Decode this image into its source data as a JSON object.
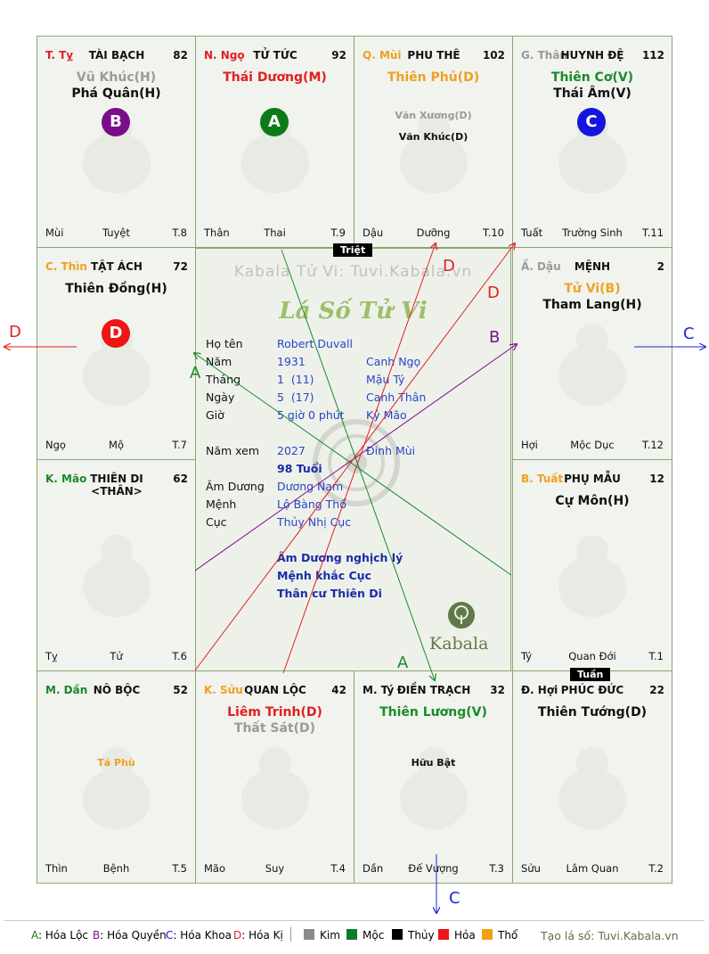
{
  "palaces": {
    "ty": {
      "zodiac": "T. Tỵ",
      "zodiac_color": "#e02020",
      "name": "TÀI BẠCH",
      "age": "82",
      "stars": [
        {
          "text": "Vũ Khúc(H)",
          "color": "#9a9a9a"
        },
        {
          "text": "Phá Quân(H)",
          "color": "#111111"
        }
      ],
      "hoa": {
        "letter": "B",
        "color": "#7a0e8a"
      },
      "bottom": {
        "left": "Mùi",
        "mid": "Tuyệt",
        "right": "T.8"
      }
    },
    "ngo": {
      "zodiac": "N. Ngọ",
      "zodiac_color": "#e02020",
      "name": "TỬ TỨC",
      "age": "92",
      "stars": [
        {
          "text": "Thái Dương(M)",
          "color": "#e02020"
        }
      ],
      "hoa": {
        "letter": "A",
        "color": "#0d7a1a"
      },
      "bottom": {
        "left": "Thân",
        "mid": "Thai",
        "right": "T.9"
      }
    },
    "mui": {
      "zodiac": "Q. Mùi",
      "zodiac_color": "#f0a020",
      "name": "PHU THÊ",
      "age": "102",
      "stars": [
        {
          "text": "Thiên Phủ(D)",
          "color": "#f0a020"
        }
      ],
      "minors": [
        {
          "text": "Văn Xương(D)",
          "color": "#9a9a9a"
        },
        {
          "text": "Văn Khúc(D)",
          "color": "#111111"
        }
      ],
      "bottom": {
        "left": "Dậu",
        "mid": "Dưỡng",
        "right": "T.10"
      }
    },
    "than": {
      "zodiac": "G. Thân",
      "zodiac_color": "#9a9a9a",
      "name": "HUYNH ĐỆ",
      "age": "112",
      "stars": [
        {
          "text": "Thiên Cơ(V)",
          "color": "#1a8a2a"
        },
        {
          "text": "Thái Âm(V)",
          "color": "#111111"
        }
      ],
      "hoa": {
        "letter": "C",
        "color": "#1515e0"
      },
      "bottom": {
        "left": "Tuất",
        "mid": "Trường Sinh",
        "right": "T.11"
      }
    },
    "thin": {
      "zodiac": "C. Thìn",
      "zodiac_color": "#f0a020",
      "name": "TẬT ÁCH",
      "age": "72",
      "stars": [
        {
          "text": "Thiên Đồng(H)",
          "color": "#111111"
        }
      ],
      "hoa": {
        "letter": "D",
        "color": "#ee1515"
      },
      "bottom": {
        "left": "Ngọ",
        "mid": "Mộ",
        "right": "T.7"
      }
    },
    "dau": {
      "zodiac": "Ấ. Dậu",
      "zodiac_color": "#9a9a9a",
      "name": "MỆNH",
      "age": "2",
      "stars": [
        {
          "text": "Tử Vi(B)",
          "color": "#f0a020"
        },
        {
          "text": "Tham Lang(H)",
          "color": "#111111"
        }
      ],
      "bottom": {
        "left": "Hợi",
        "mid": "Mộc Dục",
        "right": "T.12"
      }
    },
    "mao": {
      "zodiac": "K. Mão",
      "zodiac_color": "#1a8a2a",
      "name": "THIÊN DI <THÂN>",
      "age": "62",
      "stars": [],
      "bottom": {
        "left": "Tỵ",
        "mid": "Tử",
        "right": "T.6"
      }
    },
    "tuat": {
      "zodiac": "B. Tuất",
      "zodiac_color": "#f0a020",
      "name": "PHỤ MẪU",
      "age": "12",
      "stars": [
        {
          "text": "Cự Môn(H)",
          "color": "#111111"
        }
      ],
      "bottom": {
        "left": "Tý",
        "mid": "Quan Đới",
        "right": "T.1"
      }
    },
    "dan": {
      "zodiac": "M. Dần",
      "zodiac_color": "#1a8a2a",
      "name": "NÔ BỘC",
      "age": "52",
      "stars": [],
      "minors": [
        {
          "text": "Tả Phù",
          "color": "#f0a020"
        }
      ],
      "bottom": {
        "left": "Thìn",
        "mid": "Bệnh",
        "right": "T.5"
      }
    },
    "suu": {
      "zodiac": "K. Sửu",
      "zodiac_color": "#f0a020",
      "name": "QUAN LỘC",
      "age": "42",
      "stars": [
        {
          "text": "Liêm Trinh(D)",
          "color": "#e02020"
        },
        {
          "text": "Thất Sát(D)",
          "color": "#9a9a9a"
        }
      ],
      "bottom": {
        "left": "Mão",
        "mid": "Suy",
        "right": "T.4"
      }
    },
    "ti": {
      "zodiac": "M. Tý",
      "zodiac_color": "#111111",
      "name": "ĐIỀN TRẠCH",
      "age": "32",
      "stars": [
        {
          "text": "Thiên Lương(V)",
          "color": "#1a8a2a"
        }
      ],
      "minors": [
        {
          "text": "Hữu Bật",
          "color": "#111111"
        }
      ],
      "bottom": {
        "left": "Dần",
        "mid": "Đế Vượng",
        "right": "T.3"
      }
    },
    "hoi": {
      "zodiac": "Đ. Hợi",
      "zodiac_color": "#111111",
      "name": "PHÚC ĐỨC",
      "age": "22",
      "stars": [
        {
          "text": "Thiên Tướng(D)",
          "color": "#111111"
        }
      ],
      "bottom": {
        "left": "Sửu",
        "mid": "Lâm Quan",
        "right": "T.2"
      }
    }
  },
  "center": {
    "watermark": "Kabala Tử Vi: Tuvi.Kabala.vn",
    "title": "Lá Số Tử Vi",
    "rows": [
      {
        "label": "Họ tên",
        "v1": "Robert Duvall",
        "v2": ""
      },
      {
        "label": "Năm",
        "v1": "1931",
        "v2": "Canh Ngọ"
      },
      {
        "label": "Tháng",
        "v1": "1  (11)",
        "v2": "Mậu Tý"
      },
      {
        "label": "Ngày",
        "v1": "5  (17)",
        "v2": "Canh Thân"
      },
      {
        "label": "Giờ",
        "v1": "5 giờ 0 phút",
        "v2": "Kỷ Mão"
      },
      {
        "label": "Năm xem",
        "v1": "2027",
        "v2": "Đinh Mùi"
      },
      {
        "label": "",
        "v1": "98 Tuổi",
        "v2": ""
      },
      {
        "label": "Âm Dương",
        "v1": "Dương Nam",
        "v2": ""
      },
      {
        "label": "Mệnh",
        "v1": "Lộ Bàng Thổ",
        "v2": ""
      },
      {
        "label": "Cục",
        "v1": "Thủy Nhị Cục",
        "v2": ""
      }
    ],
    "notes": [
      "Âm Dương nghịch lý",
      "Mệnh khắc Cục",
      "Thân cư Thiên Di"
    ],
    "logo_text": "Kabala"
  },
  "markers": {
    "triet": "Triệt",
    "tuan": "Tuần"
  },
  "arrow_labels": {
    "d_left": "D",
    "c_right": "C",
    "c_bottom": "C",
    "b": "B",
    "d_top1": "D",
    "d_top2": "D",
    "a_left": "A",
    "a_bottom": "A"
  },
  "legend": {
    "items": [
      {
        "key": "A",
        "text": "Hóa Lộc",
        "color": "#0d7a1a"
      },
      {
        "key": "B",
        "text": "Hóa Quyền",
        "color": "#7a0e8a"
      },
      {
        "key": "C",
        "text": "Hóa Khoa",
        "color": "#1515e0"
      },
      {
        "key": "D",
        "text": "Hóa Kị",
        "color": "#e02020"
      }
    ],
    "elements": [
      {
        "text": "Kim",
        "color": "#8a8a8a"
      },
      {
        "text": "Mộc",
        "color": "#0d7a2a"
      },
      {
        "text": "Thủy",
        "color": "#000000"
      },
      {
        "text": "Hỏa",
        "color": "#ee1515"
      },
      {
        "text": "Thổ",
        "color": "#f0a010"
      }
    ],
    "site": "Tạo lá số: Tuvi.Kabala.vn"
  },
  "colors": {
    "grid": "#8aa870",
    "cell_bg": "#f1f3ee"
  }
}
